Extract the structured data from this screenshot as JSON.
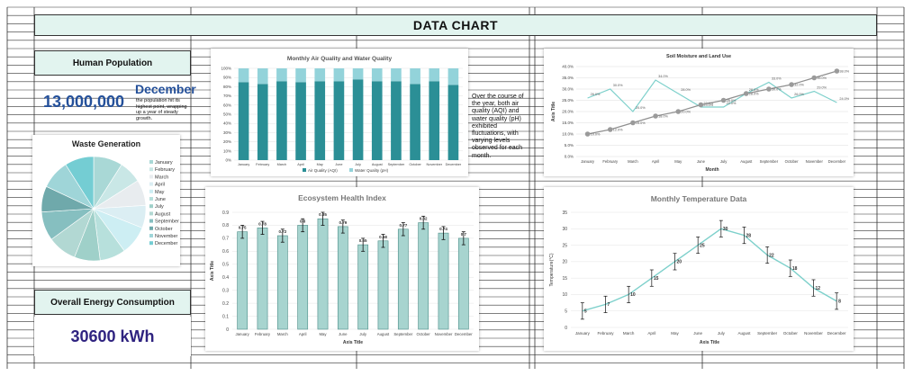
{
  "header": {
    "title": "DATA CHART"
  },
  "population": {
    "label": "Human Population",
    "value": "13,000,000",
    "month": "December",
    "note": "the population hit its highest point, wrapping up a year of steady growth."
  },
  "energy": {
    "label": "Overall Energy Consumption",
    "value": "30600 kWh"
  },
  "air_water_text": "Over the course of the year, both air quality (AQI) and water quality (pH) exhibited fluctuations, with varying levels observed for each month.",
  "colors": {
    "teal_dark": "#2b8f96",
    "teal_light": "#93d3da",
    "mint": "#e2f4ef",
    "line_teal": "#7dd0cb",
    "marker_gray": "#9a9a9a",
    "bar_fill": "#a7d4cf",
    "number_blue": "#24509a",
    "energy_purple": "#2f2380"
  },
  "chart_data": [
    {
      "id": "waste",
      "type": "pie",
      "title": "Waste Generation",
      "categories": [
        "January",
        "February",
        "March",
        "April",
        "May",
        "June",
        "July",
        "August",
        "September",
        "October",
        "November",
        "December"
      ],
      "values": [
        9,
        7,
        8,
        7,
        9,
        8,
        8,
        9,
        9,
        8,
        9,
        9
      ],
      "colors": [
        "#a9d8d6",
        "#c9e7e6",
        "#e8ecef",
        "#dbeef3",
        "#cdeef3",
        "#b7e0dc",
        "#9fd0c9",
        "#b2d8d3",
        "#86bfc0",
        "#6fa9ab",
        "#9fd5d8",
        "#74cdd3"
      ],
      "legend": "right"
    },
    {
      "id": "air_water",
      "type": "bar",
      "stacked": true,
      "percent": true,
      "title": "Monthly Air Quality and Water Quality",
      "categories": [
        "January",
        "February",
        "March",
        "April",
        "May",
        "June",
        "July",
        "August",
        "September",
        "October",
        "November",
        "December"
      ],
      "series": [
        {
          "name": "Air Quality (AQI)",
          "values": [
            85,
            83,
            86,
            85,
            86,
            86,
            88,
            86,
            86,
            83,
            86,
            82
          ]
        },
        {
          "name": "Water Quality (pH)",
          "values": [
            15,
            17,
            14,
            15,
            14,
            14,
            12,
            14,
            14,
            17,
            14,
            18
          ]
        }
      ],
      "yticks": [
        "0%",
        "10%",
        "20%",
        "30%",
        "40%",
        "50%",
        "60%",
        "70%",
        "80%",
        "90%",
        "100%"
      ],
      "ylim": [
        0,
        100
      ],
      "legend": "bottom"
    },
    {
      "id": "soil_land",
      "type": "line",
      "title": "Soil Moisture and Land Use",
      "xlabel": "Month",
      "ylabel": "Axis Title",
      "categories": [
        "January",
        "February",
        "March",
        "April",
        "May",
        "June",
        "July",
        "August",
        "September",
        "October",
        "November",
        "December"
      ],
      "series": [
        {
          "name": "Soil Moisture",
          "values": [
            26.0,
            30.0,
            20.0,
            34.0,
            28.0,
            22.0,
            22.0,
            28.0,
            33.0,
            26.0,
            29.0,
            24.0
          ],
          "labels": [
            "26.0%",
            "30.0%",
            "20.0%",
            "34.0%",
            "28.0%",
            "22.0%",
            "22.0%",
            "28.0%",
            "33.0%",
            "26.0%",
            "29.0%",
            "24.0%"
          ]
        },
        {
          "name": "Land Use",
          "values": [
            10.0,
            12.0,
            15.0,
            18.0,
            20.0,
            23.0,
            25.0,
            28.0,
            30.0,
            32.0,
            35.0,
            38.0
          ],
          "labels": [
            "10.0%",
            "12.0%",
            "15.0%",
            "18.0%",
            "20.0%",
            "23.0%",
            "25.0%",
            "28.0%",
            "30.0%",
            "32.0%",
            "35.0%",
            "38.0%"
          ]
        }
      ],
      "yticks": [
        "0.0%",
        "5.0%",
        "10.0%",
        "15.0%",
        "20.0%",
        "25.0%",
        "30.0%",
        "35.0%",
        "40.0%"
      ],
      "ylim": [
        0,
        40
      ]
    },
    {
      "id": "ecosystem",
      "type": "bar",
      "title": "Ecosystem Health Index",
      "xlabel": "Axis Title",
      "ylabel": "Axis Title",
      "categories": [
        "January",
        "February",
        "March",
        "April",
        "May",
        "June",
        "July",
        "August",
        "September",
        "October",
        "November",
        "December"
      ],
      "values": [
        0.75,
        0.78,
        0.72,
        0.8,
        0.85,
        0.79,
        0.65,
        0.68,
        0.77,
        0.82,
        0.74,
        0.7
      ],
      "labels": [
        "0.75",
        "0.78",
        "0.72",
        "0.8",
        "0.85",
        "0.79",
        "0.65",
        "0.68",
        "0.77",
        "0.82",
        "0.74",
        "0.7"
      ],
      "error": 0.05,
      "yticks": [
        "0",
        "0.1",
        "0.2",
        "0.3",
        "0.4",
        "0.5",
        "0.6",
        "0.7",
        "0.8",
        "0.9"
      ],
      "ylim": [
        0,
        0.9
      ]
    },
    {
      "id": "temperature",
      "type": "line",
      "title": "Monthly Temperature Data",
      "xlabel": "Axis Title",
      "ylabel": "Temperature(°C)",
      "categories": [
        "January",
        "February",
        "March",
        "April",
        "May",
        "June",
        "July",
        "August",
        "September",
        "October",
        "November",
        "December"
      ],
      "values": [
        5,
        7,
        10,
        15,
        20,
        25,
        30,
        28,
        22,
        18,
        12,
        8
      ],
      "labels": [
        "5",
        "7",
        "10",
        "15",
        "20",
        "25",
        "30",
        "28",
        "22",
        "18",
        "12",
        "8"
      ],
      "error": 2.5,
      "yticks": [
        "0",
        "5",
        "10",
        "15",
        "20",
        "25",
        "30",
        "35"
      ],
      "ylim": [
        0,
        35
      ]
    }
  ]
}
